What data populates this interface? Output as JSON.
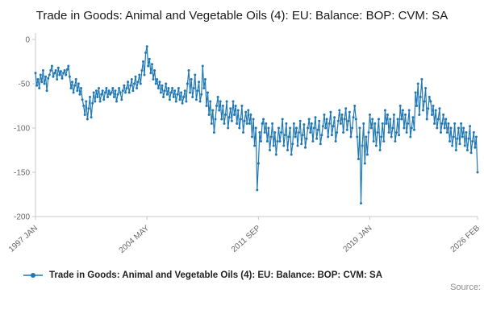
{
  "title": "Trade in Goods: Animal and Vegetable Oils (4): EU: Balance: BOP: CVM: SA",
  "footer": {
    "source_label": "Source:"
  },
  "chart_data": {
    "type": "line",
    "title": "Trade in Goods: Animal and Vegetable Oils (4): EU: Balance: BOP: CVM: SA",
    "legend": "Trade in Goods: Animal and Vegetable Oils (4): EU: Balance: BOP: CVM: SA",
    "legend_position": "bottom-left",
    "xlabel": "",
    "ylabel": "",
    "x_start": "1997 JAN",
    "frequency": "monthly",
    "ylim": [
      -200,
      0
    ],
    "y_ticks": [
      0,
      -50,
      -100,
      -150,
      -200
    ],
    "grid": false,
    "line_color": "#1f77b4",
    "x_ticks": [
      {
        "index": 0,
        "label": "1997 JAN"
      },
      {
        "index": 88,
        "label": "2004 MAY"
      },
      {
        "index": 176,
        "label": "2011 SEP"
      },
      {
        "index": 264,
        "label": "2019 JAN"
      },
      {
        "index": 349,
        "label": "2026 FEB"
      }
    ],
    "values": [
      -38,
      -52,
      -45,
      -55,
      -40,
      -48,
      -35,
      -50,
      -42,
      -58,
      -44,
      -40,
      -35,
      -30,
      -42,
      -38,
      -35,
      -45,
      -32,
      -40,
      -36,
      -44,
      -38,
      -35,
      -40,
      -34,
      -30,
      -42,
      -55,
      -48,
      -60,
      -52,
      -45,
      -58,
      -50,
      -62,
      -55,
      -68,
      -75,
      -85,
      -70,
      -90,
      -78,
      -65,
      -88,
      -72,
      -60,
      -70,
      -58,
      -65,
      -55,
      -70,
      -62,
      -58,
      -68,
      -60,
      -55,
      -65,
      -58,
      -62,
      -60,
      -55,
      -65,
      -58,
      -70,
      -62,
      -55,
      -60,
      -68,
      -58,
      -52,
      -60,
      -55,
      -48,
      -60,
      -52,
      -45,
      -58,
      -50,
      -42,
      -55,
      -48,
      -40,
      -50,
      -35,
      -25,
      -40,
      -15,
      -8,
      -30,
      -22,
      -38,
      -28,
      -45,
      -35,
      -50,
      -45,
      -55,
      -48,
      -60,
      -52,
      -65,
      -58,
      -50,
      -62,
      -55,
      -68,
      -60,
      -55,
      -65,
      -58,
      -70,
      -62,
      -55,
      -68,
      -60,
      -72,
      -65,
      -58,
      -70,
      -50,
      -35,
      -60,
      -45,
      -65,
      -55,
      -40,
      -68,
      -58,
      -48,
      -70,
      -62,
      -30,
      -55,
      -45,
      -75,
      -60,
      -85,
      -70,
      -95,
      -80,
      -105,
      -90,
      -75,
      -65,
      -80,
      -70,
      -90,
      -75,
      -95,
      -85,
      -70,
      -100,
      -88,
      -78,
      -92,
      -70,
      -85,
      -75,
      -95,
      -80,
      -100,
      -90,
      -75,
      -105,
      -92,
      -82,
      -95,
      -80,
      -95,
      -85,
      -110,
      -90,
      -120,
      -100,
      -170,
      -140,
      -105,
      -115,
      -95,
      -90,
      -105,
      -95,
      -115,
      -100,
      -125,
      -110,
      -95,
      -120,
      -105,
      -130,
      -115,
      -100,
      -115,
      -105,
      -90,
      -120,
      -108,
      -95,
      -125,
      -110,
      -100,
      -130,
      -118,
      -95,
      -110,
      -100,
      -120,
      -105,
      -92,
      -118,
      -108,
      -96,
      -122,
      -112,
      -100,
      -90,
      -105,
      -95,
      -115,
      -100,
      -88,
      -112,
      -102,
      -92,
      -118,
      -108,
      -98,
      -85,
      -100,
      -90,
      -110,
      -95,
      -82,
      -108,
      -98,
      -88,
      -115,
      -105,
      -92,
      -80,
      -95,
      -85,
      -105,
      -90,
      -78,
      -102,
      -92,
      -82,
      -110,
      -100,
      -88,
      -75,
      -90,
      -110,
      -135,
      -100,
      -185,
      -120,
      -95,
      -140,
      -110,
      -130,
      -105,
      -85,
      -100,
      -90,
      -115,
      -95,
      -120,
      -105,
      -90,
      -125,
      -110,
      -95,
      -115,
      -80,
      -95,
      -85,
      -105,
      -90,
      -110,
      -100,
      -85,
      -115,
      -105,
      -90,
      -108,
      -75,
      -90,
      -80,
      -100,
      -85,
      -105,
      -95,
      -80,
      -110,
      -100,
      -88,
      -102,
      -60,
      -75,
      -50,
      -85,
      -65,
      -45,
      -80,
      -70,
      -55,
      -90,
      -78,
      -65,
      -70,
      -85,
      -75,
      -95,
      -80,
      -100,
      -90,
      -78,
      -105,
      -95,
      -85,
      -100,
      -90,
      -105,
      -95,
      -115,
      -100,
      -120,
      -110,
      -95,
      -125,
      -112,
      -100,
      -118,
      -95,
      -110,
      -100,
      -120,
      -105,
      -125,
      -112,
      -98,
      -128,
      -115,
      -105,
      -122,
      -110,
      -150
    ]
  }
}
